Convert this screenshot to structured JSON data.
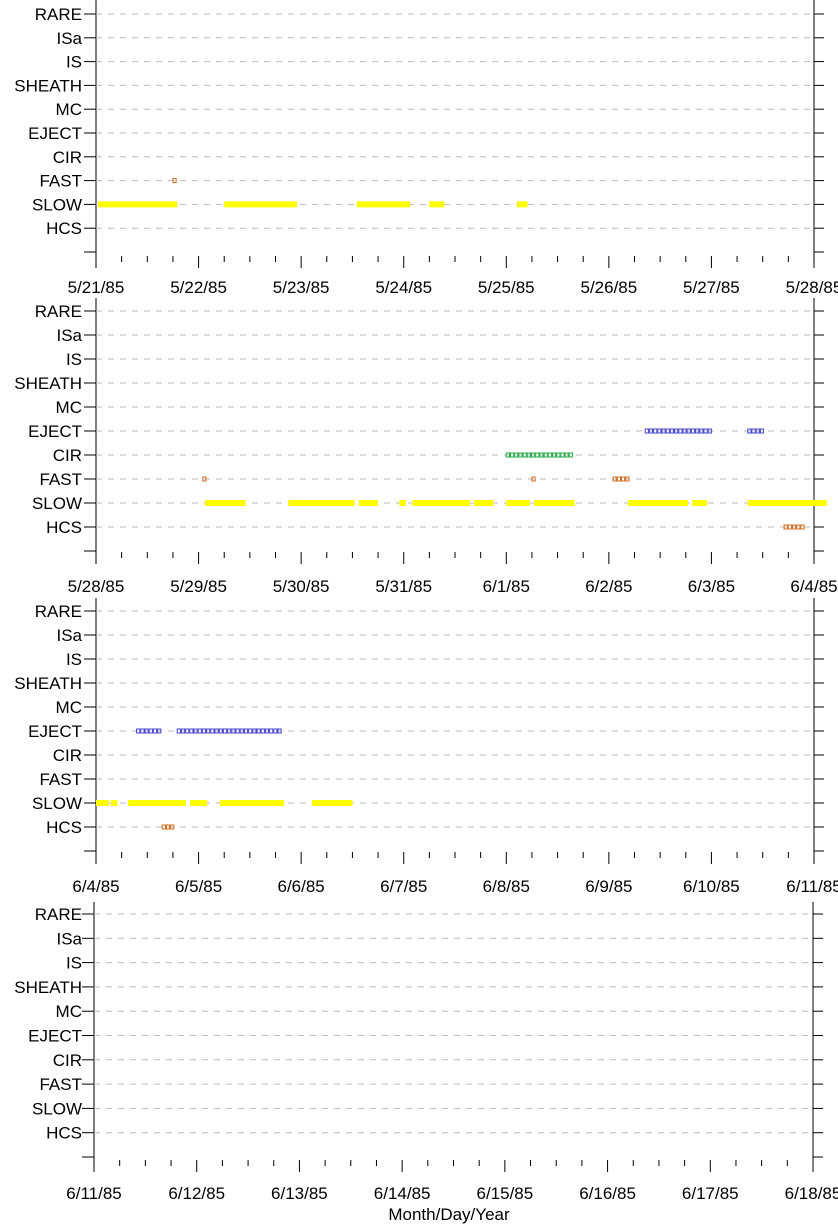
{
  "chart_data": [
    {
      "type": "timeline",
      "categories": [
        "RARE",
        "ISa",
        "IS",
        "SHEATH",
        "MC",
        "EJECT",
        "CIR",
        "FAST",
        "SLOW",
        "HCS"
      ],
      "x_tick_labels": [
        "5/21/85",
        "5/22/85",
        "5/23/85",
        "5/24/85",
        "5/25/85",
        "5/26/85",
        "5/27/85",
        "5/28/85"
      ],
      "xlim": [
        "1985-05-21",
        "1985-05-28"
      ],
      "grid": true,
      "series": [
        {
          "category": "FAST",
          "style": "open-squares",
          "color": "#d2691e",
          "intervals": [
            [
              "1985-05-21T18:00",
              "1985-05-21T18:30"
            ]
          ]
        },
        {
          "category": "SLOW",
          "style": "filled",
          "color": "#ffff00",
          "intervals": [
            [
              "1985-05-21T00:30",
              "1985-05-21T19:00"
            ],
            [
              "1985-05-22T06:00",
              "1985-05-22T23:00"
            ],
            [
              "1985-05-23T13:00",
              "1985-05-24T01:30"
            ],
            [
              "1985-05-24T06:00",
              "1985-05-24T09:30"
            ],
            [
              "1985-05-25T02:30",
              "1985-05-25T05:00"
            ]
          ]
        }
      ]
    },
    {
      "type": "timeline",
      "categories": [
        "RARE",
        "ISa",
        "IS",
        "SHEATH",
        "MC",
        "EJECT",
        "CIR",
        "FAST",
        "SLOW",
        "HCS"
      ],
      "x_tick_labels": [
        "5/28/85",
        "5/29/85",
        "5/30/85",
        "5/31/85",
        "6/1/85",
        "6/2/85",
        "6/3/85",
        "6/4/85"
      ],
      "xlim": [
        "1985-05-28",
        "1985-06-04"
      ],
      "grid": true,
      "series": [
        {
          "category": "EJECT",
          "style": "open-squares",
          "color": "#4444cc",
          "intervals": [
            [
              "1985-06-02T08:30",
              "1985-06-03T00:30"
            ],
            [
              "1985-06-03T08:30",
              "1985-06-03T12:30"
            ]
          ]
        },
        {
          "category": "CIR",
          "style": "open-squares",
          "color": "#22aa44",
          "intervals": [
            [
              "1985-06-01T00:00",
              "1985-06-01T15:30"
            ]
          ]
        },
        {
          "category": "FAST",
          "style": "open-squares",
          "color": "#d2691e",
          "intervals": [
            [
              "1985-05-29T01:00",
              "1985-05-29T01:30"
            ],
            [
              "1985-06-01T06:00",
              "1985-06-01T06:30"
            ],
            [
              "1985-06-02T01:00",
              "1985-06-02T04:30"
            ]
          ]
        },
        {
          "category": "SLOW",
          "style": "filled",
          "color": "#ffff00",
          "intervals": [
            [
              "1985-05-29T01:30",
              "1985-05-29T11:00"
            ],
            [
              "1985-05-29T21:00",
              "1985-05-30T12:30"
            ],
            [
              "1985-05-30T13:30",
              "1985-05-30T18:00"
            ],
            [
              "1985-05-30T23:00",
              "1985-05-31T00:30"
            ],
            [
              "1985-05-31T02:00",
              "1985-05-31T15:30"
            ],
            [
              "1985-05-31T16:30",
              "1985-05-31T21:00"
            ],
            [
              "1985-06-01T00:00",
              "1985-06-01T05:30"
            ],
            [
              "1985-06-01T06:30",
              "1985-06-01T16:00"
            ],
            [
              "1985-06-02T04:30",
              "1985-06-02T18:30"
            ],
            [
              "1985-06-02T19:30",
              "1985-06-02T23:00"
            ],
            [
              "1985-06-03T08:30",
              "1985-06-04T03:00"
            ]
          ]
        },
        {
          "category": "HCS",
          "style": "open-squares",
          "color": "#d2691e",
          "intervals": [
            [
              "1985-06-03T17:00",
              "1985-06-03T21:30"
            ]
          ]
        }
      ]
    },
    {
      "type": "timeline",
      "categories": [
        "RARE",
        "ISa",
        "IS",
        "SHEATH",
        "MC",
        "EJECT",
        "CIR",
        "FAST",
        "SLOW",
        "HCS"
      ],
      "x_tick_labels": [
        "6/4/85",
        "6/5/85",
        "6/6/85",
        "6/7/85",
        "6/8/85",
        "6/9/85",
        "6/10/85",
        "6/11/85"
      ],
      "xlim": [
        "1985-06-04",
        "1985-06-11"
      ],
      "grid": true,
      "series": [
        {
          "category": "EJECT",
          "style": "open-squares",
          "color": "#4444cc",
          "intervals": [
            [
              "1985-06-04T09:30",
              "1985-06-04T15:30"
            ],
            [
              "1985-06-04T19:00",
              "1985-06-05T20:00"
            ]
          ]
        },
        {
          "category": "SLOW",
          "style": "filled",
          "color": "#ffff00",
          "intervals": [
            [
              "1985-06-04T00:00",
              "1985-06-04T03:00"
            ],
            [
              "1985-06-04T03:30",
              "1985-06-04T05:00"
            ],
            [
              "1985-06-04T07:30",
              "1985-06-04T21:00"
            ],
            [
              "1985-06-04T22:00",
              "1985-06-05T02:00"
            ],
            [
              "1985-06-05T05:00",
              "1985-06-05T20:00"
            ],
            [
              "1985-06-06T02:30",
              "1985-06-06T12:00"
            ]
          ]
        },
        {
          "category": "HCS",
          "style": "open-squares",
          "color": "#d2691e",
          "intervals": [
            [
              "1985-06-04T15:30",
              "1985-06-04T18:30"
            ]
          ]
        }
      ]
    },
    {
      "type": "timeline",
      "categories": [
        "RARE",
        "ISa",
        "IS",
        "SHEATH",
        "MC",
        "EJECT",
        "CIR",
        "FAST",
        "SLOW",
        "HCS"
      ],
      "x_tick_labels": [
        "6/11/85",
        "6/12/85",
        "6/13/85",
        "6/14/85",
        "6/15/85",
        "6/16/85",
        "6/17/85",
        "6/18/85"
      ],
      "xlim": [
        "1985-06-11",
        "1985-06-18"
      ],
      "grid": true,
      "xlabel": "Month/Day/Year",
      "series": []
    }
  ]
}
